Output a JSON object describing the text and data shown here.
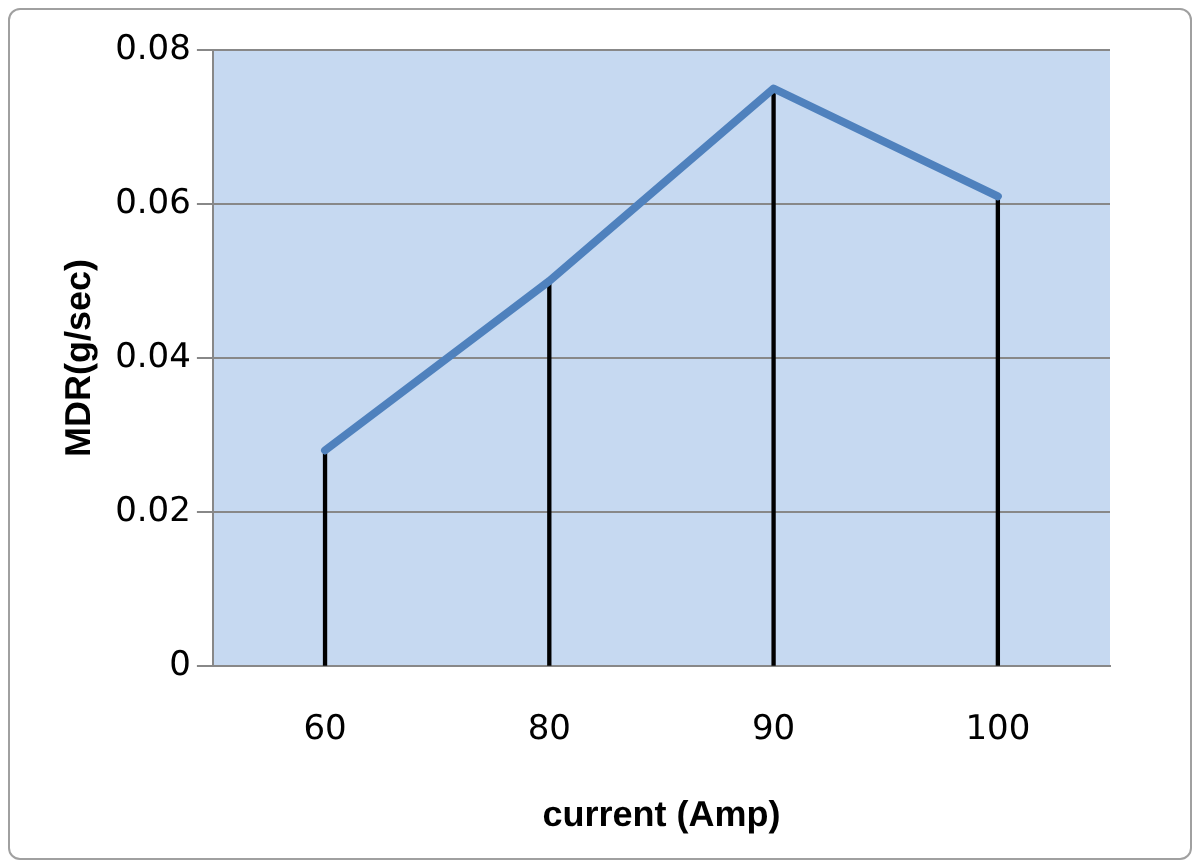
{
  "chart_data": {
    "type": "line",
    "xlabel": "current (Amp)",
    "ylabel": "MDR(g/sec)",
    "categories": [
      "60",
      "80",
      "90",
      "100"
    ],
    "series": [
      {
        "color": "#4f81bd",
        "values": [
          0.028,
          0.05,
          0.075,
          0.061
        ]
      },
      {
        "type": "bar",
        "color": "#000000",
        "values": [
          0.028,
          0.05,
          0.075,
          0.061
        ]
      }
    ],
    "ylim": [
      0,
      0.08
    ],
    "yticks": [
      0,
      {
        "value": 0.02,
        "label": "0.02"
      },
      {
        "value": 0.04,
        "label": "0.04"
      },
      {
        "value": 0.06,
        "label": "0.06"
      },
      {
        "value": 0.08,
        "label": "0.08"
      }
    ],
    "grid": "y",
    "legend": false,
    "marker": "none",
    "line_style": "solid"
  }
}
